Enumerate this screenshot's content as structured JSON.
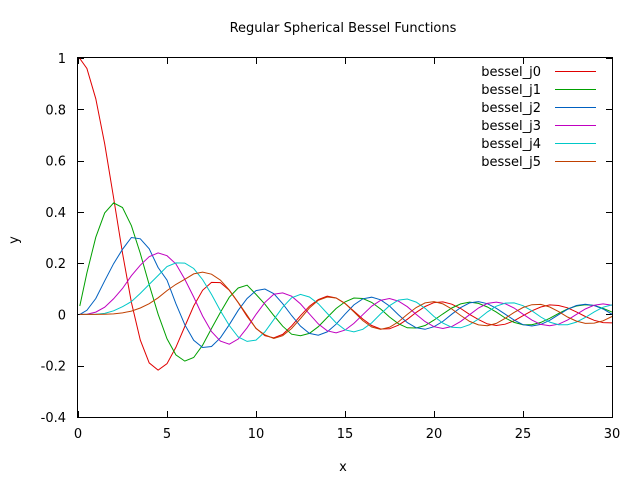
{
  "chart_data": {
    "type": "line",
    "title": "Regular Spherical Bessel Functions",
    "xlabel": "x",
    "ylabel": "y",
    "xlim": [
      0,
      30
    ],
    "ylim": [
      -0.4,
      1
    ],
    "xticks": [
      0,
      5,
      10,
      15,
      20,
      25,
      30
    ],
    "xtick_labels": [
      "0",
      "5",
      "10",
      "15",
      "20",
      "25",
      "30"
    ],
    "yticks": [
      -0.4,
      -0.2,
      0,
      0.2,
      0.4,
      0.6,
      0.8,
      1
    ],
    "ytick_labels": [
      "-0.4",
      "-0.2",
      "0",
      "0.2",
      "0.4",
      "0.6",
      "0.8",
      "1"
    ],
    "grid": false,
    "legend_position": "top-right",
    "x": [
      0.1,
      0.5,
      1,
      1.5,
      2,
      2.5,
      3,
      3.5,
      4,
      4.5,
      5,
      5.5,
      6,
      6.5,
      7,
      7.5,
      8,
      8.5,
      9,
      9.5,
      10,
      10.5,
      11,
      11.5,
      12,
      12.5,
      13,
      13.5,
      14,
      14.5,
      15,
      15.5,
      16,
      16.5,
      17,
      17.5,
      18,
      18.5,
      19,
      19.5,
      20,
      20.5,
      21,
      21.5,
      22,
      22.5,
      23,
      23.5,
      24,
      24.5,
      25,
      25.5,
      26,
      26.5,
      27,
      27.5,
      28,
      28.5,
      29,
      29.5,
      30
    ],
    "series": [
      {
        "name": "bessel_j0",
        "color": "#e00000",
        "values": [
          0.998,
          0.959,
          0.841,
          0.665,
          0.455,
          0.239,
          0.047,
          -0.1,
          -0.189,
          -0.217,
          -0.192,
          -0.128,
          -0.047,
          0.033,
          0.094,
          0.125,
          0.124,
          0.094,
          0.046,
          -0.008,
          -0.054,
          -0.083,
          -0.091,
          -0.078,
          -0.045,
          -0.005,
          0.032,
          0.058,
          0.071,
          0.064,
          0.043,
          0.013,
          -0.018,
          -0.043,
          -0.057,
          -0.056,
          -0.042,
          -0.019,
          0.008,
          0.031,
          0.046,
          0.049,
          0.04,
          0.023,
          0.0,
          -0.02,
          -0.037,
          -0.043,
          -0.038,
          -0.025,
          -0.005,
          0.014,
          0.029,
          0.037,
          0.035,
          0.026,
          0.01,
          -0.008,
          -0.023,
          -0.032,
          -0.033
        ]
      },
      {
        "name": "bessel_j1",
        "color": "#00a000",
        "values": [
          0.033,
          0.162,
          0.301,
          0.396,
          0.435,
          0.417,
          0.346,
          0.238,
          0.116,
          0.001,
          -0.095,
          -0.158,
          -0.182,
          -0.168,
          -0.12,
          -0.055,
          0.008,
          0.067,
          0.103,
          0.114,
          0.078,
          0.04,
          -0.004,
          -0.046,
          -0.077,
          -0.083,
          -0.074,
          -0.048,
          -0.012,
          0.023,
          0.049,
          0.064,
          0.062,
          0.047,
          0.021,
          -0.01,
          -0.036,
          -0.052,
          -0.053,
          -0.043,
          -0.022,
          0.002,
          0.025,
          0.041,
          0.048,
          0.043,
          0.029,
          0.009,
          -0.014,
          -0.031,
          -0.04,
          -0.04,
          -0.031,
          -0.015,
          0.004,
          0.021,
          0.033,
          0.038,
          0.035,
          0.024,
          0.009
        ]
      },
      {
        "name": "bessel_j2",
        "color": "#0060c0",
        "values": [
          0.0,
          0.016,
          0.062,
          0.131,
          0.198,
          0.254,
          0.3,
          0.295,
          0.256,
          0.183,
          0.134,
          0.042,
          -0.04,
          -0.101,
          -0.129,
          -0.125,
          -0.091,
          -0.04,
          0.016,
          0.062,
          0.093,
          0.099,
          0.081,
          0.042,
          -0.004,
          -0.046,
          -0.074,
          -0.081,
          -0.068,
          -0.038,
          0.001,
          0.037,
          0.061,
          0.067,
          0.057,
          0.033,
          -0.001,
          -0.032,
          -0.052,
          -0.058,
          -0.048,
          -0.027,
          0.001,
          0.027,
          0.045,
          0.05,
          0.042,
          0.024,
          0.001,
          -0.022,
          -0.04,
          -0.045,
          -0.039,
          -0.023,
          -0.001,
          0.02,
          0.035,
          0.04,
          0.035,
          0.021,
          0.001
        ]
      },
      {
        "name": "bessel_j3",
        "color": "#c000c0",
        "values": [
          0.0,
          0.001,
          0.009,
          0.028,
          0.061,
          0.101,
          0.151,
          0.192,
          0.225,
          0.24,
          0.229,
          0.197,
          0.137,
          0.068,
          -0.006,
          -0.067,
          -0.104,
          -0.116,
          -0.096,
          -0.052,
          0.0,
          0.047,
          0.079,
          0.084,
          0.071,
          0.041,
          0.002,
          -0.037,
          -0.064,
          -0.072,
          -0.061,
          -0.035,
          -0.001,
          0.032,
          0.055,
          0.062,
          0.052,
          0.03,
          0.0,
          -0.028,
          -0.048,
          -0.055,
          -0.047,
          -0.027,
          -0.001,
          0.025,
          0.043,
          0.048,
          0.042,
          0.025,
          0.001,
          -0.022,
          -0.039,
          -0.044,
          -0.038,
          -0.022,
          0.0,
          0.021,
          0.036,
          0.041,
          0.036
        ]
      },
      {
        "name": "bessel_j4",
        "color": "#00c8c8",
        "values": [
          0.0,
          0.0,
          0.001,
          0.004,
          0.014,
          0.03,
          0.05,
          0.082,
          0.117,
          0.152,
          0.187,
          0.201,
          0.2,
          0.179,
          0.136,
          0.078,
          0.014,
          -0.043,
          -0.088,
          -0.105,
          -0.1,
          -0.068,
          -0.02,
          0.028,
          0.065,
          0.078,
          0.068,
          0.042,
          0.004,
          -0.033,
          -0.06,
          -0.068,
          -0.058,
          -0.033,
          0.002,
          0.034,
          0.056,
          0.06,
          0.048,
          0.024,
          -0.008,
          -0.034,
          -0.05,
          -0.052,
          -0.04,
          -0.018,
          0.01,
          0.032,
          0.044,
          0.045,
          0.034,
          0.014,
          -0.01,
          -0.03,
          -0.04,
          -0.04,
          -0.03,
          -0.012,
          0.01,
          0.028,
          0.037
        ]
      },
      {
        "name": "bessel_j5",
        "color": "#c04000",
        "values": [
          0.0,
          0.0,
          0.0,
          0.001,
          0.002,
          0.006,
          0.013,
          0.025,
          0.042,
          0.065,
          0.093,
          0.117,
          0.137,
          0.158,
          0.165,
          0.157,
          0.134,
          0.095,
          0.047,
          -0.003,
          -0.055,
          -0.08,
          -0.094,
          -0.083,
          -0.055,
          -0.016,
          0.025,
          0.055,
          0.068,
          0.064,
          0.043,
          0.01,
          -0.024,
          -0.049,
          -0.058,
          -0.05,
          -0.029,
          0.0,
          0.027,
          0.045,
          0.05,
          0.041,
          0.021,
          -0.004,
          -0.027,
          -0.041,
          -0.044,
          -0.035,
          -0.015,
          0.008,
          0.027,
          0.038,
          0.039,
          0.029,
          0.011,
          -0.01,
          -0.026,
          -0.035,
          -0.034,
          -0.025,
          -0.008
        ]
      }
    ]
  }
}
